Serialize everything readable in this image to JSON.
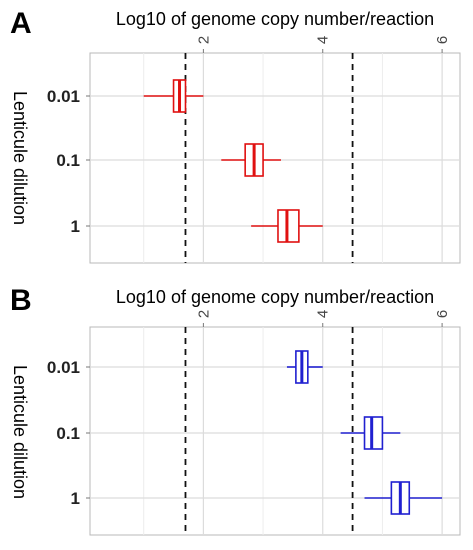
{
  "chart_data": [
    {
      "panel_label": "A",
      "type": "boxplot",
      "orientation": "horizontal",
      "x_axis_position": "top",
      "xlabel": "Log10 of genome copy number/reaction",
      "ylabel": "Lenticule dilution",
      "xlim": [
        0.1,
        6.3
      ],
      "xticks": [
        2,
        4,
        6
      ],
      "x_tick_labels": [
        "2",
        "4",
        "6"
      ],
      "x_tick_rotation": -90,
      "reference_lines": [
        1.7,
        4.5
      ],
      "grid": true,
      "color": "#e01010",
      "categories": [
        "0.01",
        "0.1",
        "1"
      ],
      "boxes": [
        {
          "category": "0.01",
          "whisker_low": 1.0,
          "q1": 1.5,
          "median": 1.6,
          "q3": 1.7,
          "whisker_high": 2.0
        },
        {
          "category": "0.1",
          "whisker_low": 2.3,
          "q1": 2.7,
          "median": 2.85,
          "q3": 3.0,
          "whisker_high": 3.3
        },
        {
          "category": "1",
          "whisker_low": 2.8,
          "q1": 3.25,
          "median": 3.4,
          "q3": 3.6,
          "whisker_high": 4.0
        }
      ]
    },
    {
      "panel_label": "B",
      "type": "boxplot",
      "orientation": "horizontal",
      "x_axis_position": "top",
      "xlabel": "Log10 of genome copy number/reaction",
      "ylabel": "Lenticule dilution",
      "xlim": [
        0.1,
        6.3
      ],
      "xticks": [
        2,
        4,
        6
      ],
      "x_tick_labels": [
        "2",
        "4",
        "6"
      ],
      "x_tick_rotation": -90,
      "reference_lines": [
        1.7,
        4.5
      ],
      "grid": true,
      "color": "#2020d0",
      "categories": [
        "0.01",
        "0.1",
        "1"
      ],
      "boxes": [
        {
          "category": "0.01",
          "whisker_low": 3.4,
          "q1": 3.55,
          "median": 3.65,
          "q3": 3.75,
          "whisker_high": 4.0
        },
        {
          "category": "0.1",
          "whisker_low": 4.3,
          "q1": 4.7,
          "median": 4.82,
          "q3": 5.0,
          "whisker_high": 5.3
        },
        {
          "category": "1",
          "whisker_low": 4.7,
          "q1": 5.15,
          "median": 5.3,
          "q3": 5.45,
          "whisker_high": 6.0
        }
      ]
    }
  ]
}
